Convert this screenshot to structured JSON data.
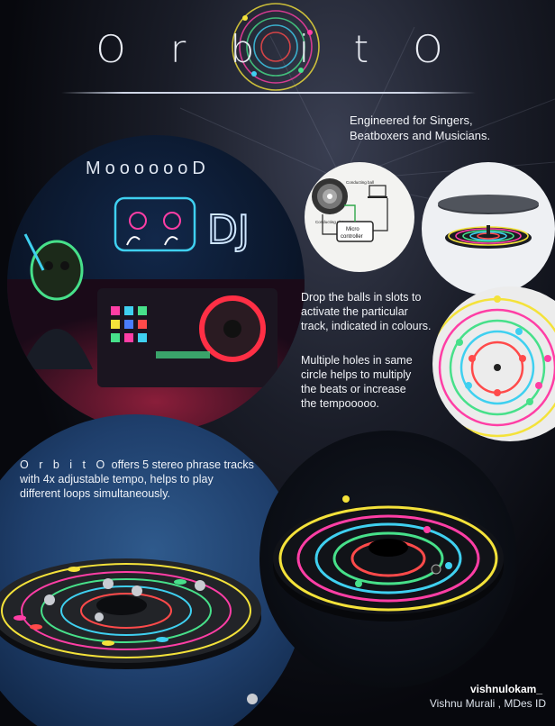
{
  "header": {
    "title": "O r b i t O",
    "tagline_line1": "Engineered for Singers,",
    "tagline_line2": "Beatboxers and Musicians."
  },
  "mood": {
    "title": "MooooooD",
    "neon_sign": "DJ"
  },
  "diagram": {
    "label_conducting_ball": "Conducting ball",
    "label_conducting_plate": "Conducting plate",
    "label_micro": "Micro",
    "label_controller": "controller"
  },
  "instructions": {
    "drop_line1": "Drop the balls in slots to",
    "drop_line2": "activate the particular",
    "drop_line3": "track, indicated in colours.",
    "multi_line1": "Multiple holes in same",
    "multi_line2": "circle  helps to  multiply",
    "multi_line3": "the beats or increase",
    "multi_line4": "the tempooooo."
  },
  "offer": {
    "brand": "O r b i t O",
    "line1_rest": " offers 5 stereo phrase tracks",
    "line2": "with 4x adjustable tempo, helps to play",
    "line3": "different loops simultaneously."
  },
  "credits": {
    "handle": "vishnulokam_",
    "name": "Vishnu Murali ,  MDes  ID"
  },
  "colors": {
    "ring_yellow": "#f4e23a",
    "ring_pink": "#ff3ea5",
    "ring_green": "#47e08a",
    "ring_cyan": "#3fd0f0",
    "ring_red": "#ff4a4a",
    "ring_blue": "#4a7dff"
  }
}
